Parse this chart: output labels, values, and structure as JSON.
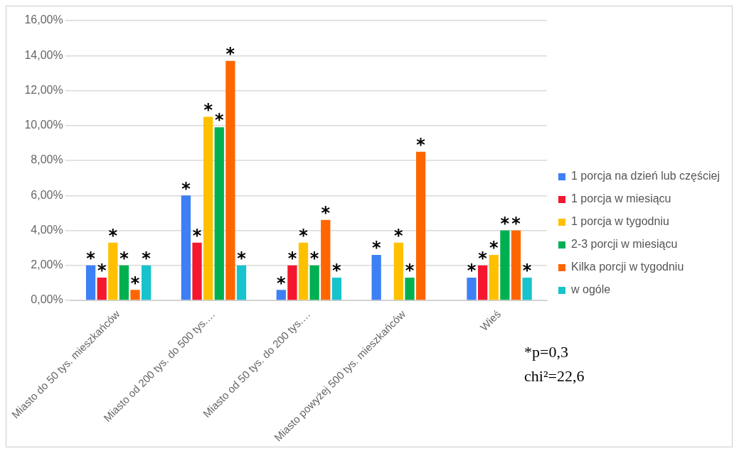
{
  "chart_data": {
    "type": "bar",
    "categories": [
      "Miasto do 50 tys. mieszkańców",
      "Miasto od 200 tys. do 500 tys.…",
      "Miasto od 50 tys. do 200 tys.…",
      "Miasto powyżej 500 tys. mieszkańców",
      "Wieś"
    ],
    "series": [
      {
        "name": "1 porcja na dzień lub częściej",
        "color": "#3d7ff5",
        "values": [
          2.0,
          6.0,
          0.6,
          2.6,
          1.3
        ],
        "value_labels": [
          "*",
          "*",
          "*",
          "*",
          "*"
        ]
      },
      {
        "name": "1 porcja w miesiącu",
        "color": "#f5172e",
        "values": [
          1.3,
          3.3,
          2.0,
          null,
          2.0
        ],
        "value_labels": [
          "*",
          "*",
          "*",
          null,
          "*"
        ]
      },
      {
        "name": "1 porcja w tygodniu",
        "color": "#ffc000",
        "values": [
          3.3,
          10.5,
          3.3,
          3.3,
          2.6
        ],
        "value_labels": [
          "*",
          "*",
          "*",
          "*",
          "*"
        ]
      },
      {
        "name": "2-3 porcji w miesiącu",
        "color": "#00b050",
        "values": [
          2.0,
          9.9,
          2.0,
          1.3,
          4.0
        ],
        "value_labels": [
          "*",
          "*",
          "*",
          "*",
          "*"
        ]
      },
      {
        "name": "Kilka porcji w tygodniu",
        "color": "#ff6600",
        "values": [
          0.6,
          13.7,
          4.6,
          8.5,
          4.0
        ],
        "value_labels": [
          "*",
          "*",
          "*",
          "*",
          "*"
        ]
      },
      {
        "name": "w ogóle",
        "color": "#17c3cc",
        "values": [
          2.0,
          2.0,
          1.3,
          null,
          1.3
        ],
        "value_labels": [
          "*",
          "*",
          "*",
          null,
          "*"
        ]
      }
    ],
    "ylim": [
      0,
      16
    ],
    "yticks": [
      {
        "value": 0,
        "label": "0,00%"
      },
      {
        "value": 2,
        "label": "2,00%"
      },
      {
        "value": 4,
        "label": "4,00%"
      },
      {
        "value": 6,
        "label": "6,00%"
      },
      {
        "value": 8,
        "label": "8,00%"
      },
      {
        "value": 10,
        "label": "10,00%"
      },
      {
        "value": 12,
        "label": "12,00%"
      },
      {
        "value": 14,
        "label": "14,00%"
      },
      {
        "value": 16,
        "label": "16,00%"
      }
    ],
    "grid": "y",
    "legend": "right",
    "annotations": [
      "*p=0,3",
      "chi²=22,6"
    ]
  }
}
